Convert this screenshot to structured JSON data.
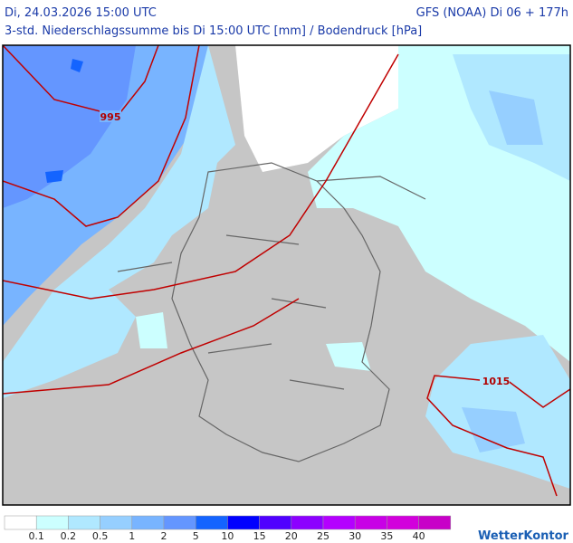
{
  "header": {
    "valid_time": "Di, 24.03.2026 15:00 UTC",
    "model_run": "GFS (NOAA) Di 06 + 177h",
    "subtitle": "3-std. Niederschlagssumme bis Di 15:00 UTC [mm] / Bodendruck [hPa]"
  },
  "map": {
    "isobar_labels": [
      "995",
      "1015"
    ]
  },
  "legend": {
    "colors": [
      "#ffffff",
      "#ccffff",
      "#b0e8ff",
      "#96cfff",
      "#78b4ff",
      "#6496ff",
      "#1464ff",
      "#0000ff",
      "#5000ff",
      "#8c00ff",
      "#b400ff",
      "#c800e6",
      "#d200dc",
      "#c800c8"
    ],
    "ticks": [
      0.1,
      0.2,
      0.5,
      1,
      2,
      5,
      10,
      15,
      20,
      25,
      30,
      35,
      40
    ]
  },
  "logo": "WetterKontor"
}
